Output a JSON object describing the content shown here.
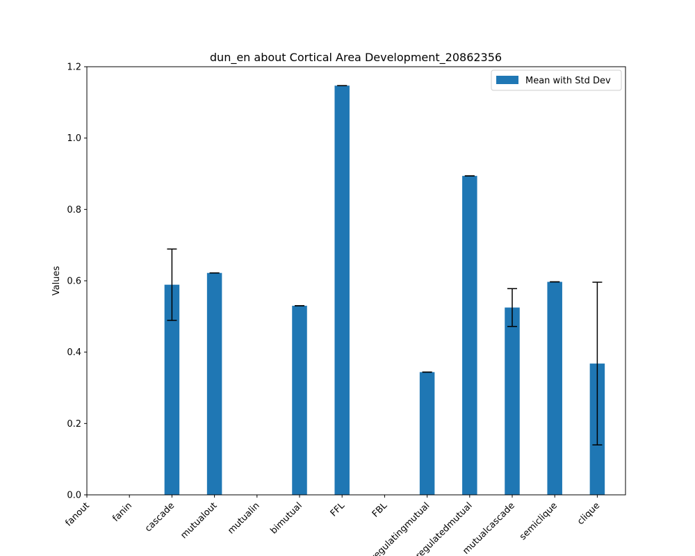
{
  "chart_data": {
    "type": "bar",
    "title": "dun_en about Cortical Area Development_20862356",
    "xlabel": "",
    "ylabel": "Values",
    "ylim": [
      0,
      1.2
    ],
    "yticks": [
      0.0,
      0.2,
      0.4,
      0.6,
      0.8,
      1.0,
      1.2
    ],
    "ytick_labels": [
      "0.0",
      "0.2",
      "0.4",
      "0.6",
      "0.8",
      "1.0",
      "1.2"
    ],
    "categories": [
      "fanout",
      "fanin",
      "cascade",
      "mutualout",
      "mutualin",
      "bimutual",
      "FFL",
      "FBL",
      "regulatingmutual",
      "regulatedmutual",
      "mutualcascade",
      "semiclique",
      "clique"
    ],
    "series": [
      {
        "name": "Mean with Std Dev",
        "color": "#1f77b4",
        "values": [
          0,
          0,
          0.589,
          0.622,
          0,
          0.53,
          1.147,
          0,
          0.344,
          0.894,
          0.525,
          0.597,
          0.368
        ],
        "errors": [
          0,
          0,
          0.1,
          0,
          0,
          0,
          0,
          0,
          0,
          0,
          0.053,
          0,
          0.228
        ]
      }
    ],
    "legend_position": "top-right",
    "grid": false
  }
}
